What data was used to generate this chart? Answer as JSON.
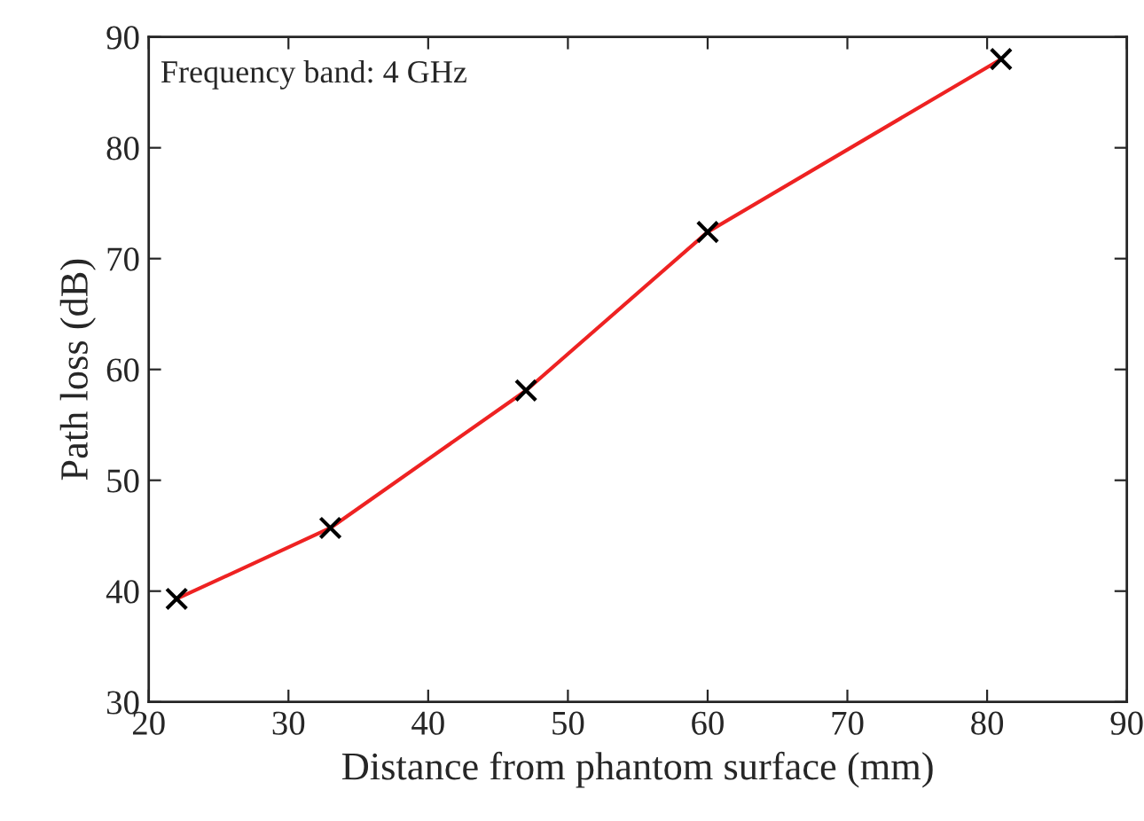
{
  "chart_data": {
    "type": "line",
    "xlabel": "Distance from phantom surface (mm)",
    "ylabel": "Path loss (dB)",
    "annotations": [
      "Frequency band: 4 GHz"
    ],
    "x": [
      22,
      33,
      47,
      60,
      81
    ],
    "series": [
      {
        "color": "#ee2222",
        "values": [
          39.3,
          45.7,
          58.1,
          72.4,
          88.0
        ]
      }
    ],
    "marker": "cross",
    "line_style": "solid",
    "xlim": [
      20,
      90
    ],
    "xticks": [
      20,
      30,
      40,
      50,
      60,
      70,
      80,
      90
    ],
    "ylim": [
      30,
      90
    ],
    "yticks": [
      30,
      40,
      50,
      60,
      70,
      80,
      90
    ],
    "grid": false,
    "legend": false
  }
}
